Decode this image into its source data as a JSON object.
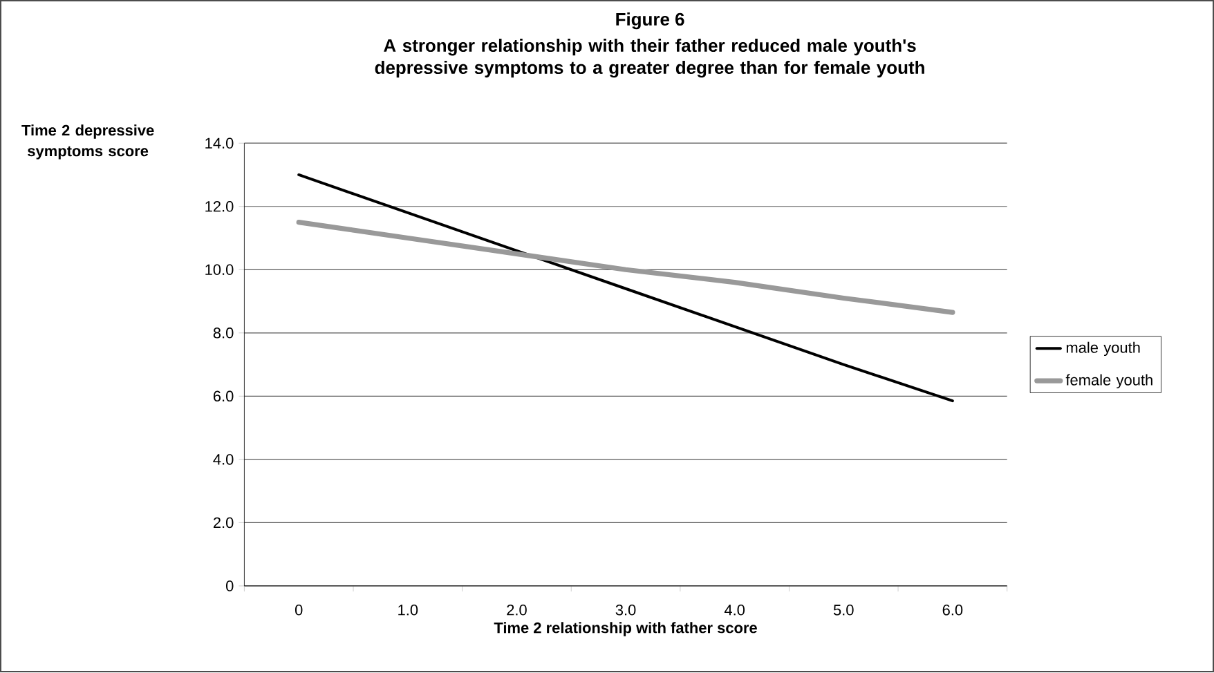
{
  "chart_data": {
    "type": "line",
    "title": "Figure 6",
    "subtitle": "A stronger relationship with their father reduced male youth's depressive symptoms to a greater degree than for female youth",
    "xlabel": "Time 2 relationship with father score",
    "ylabel": "Time 2 depressive symptoms score",
    "categories": [
      "0",
      "1.0",
      "2.0",
      "3.0",
      "4.0",
      "5.0",
      "6.0"
    ],
    "series": [
      {
        "name": "male youth",
        "color": "#000000",
        "values": [
          13.0,
          11.8,
          10.6,
          9.4,
          8.2,
          7.0,
          5.85
        ]
      },
      {
        "name": "female youth",
        "color": "#999999",
        "values": [
          11.5,
          11.0,
          10.5,
          10.0,
          9.6,
          9.1,
          8.65
        ]
      }
    ],
    "ylim": [
      0,
      14
    ],
    "yticks": [
      0,
      {
        "value": 2,
        "label": "2.0"
      },
      {
        "value": 4,
        "label": "4.0"
      },
      {
        "value": 6,
        "label": "6.0"
      },
      {
        "value": 8,
        "label": "8.0"
      },
      {
        "value": 10,
        "label": "10.0"
      },
      {
        "value": 12,
        "label": "12.0"
      },
      {
        "value": 14,
        "label": "14.0"
      }
    ],
    "grid": "y",
    "legend": "right",
    "marker": "none",
    "line_style": "solid"
  }
}
